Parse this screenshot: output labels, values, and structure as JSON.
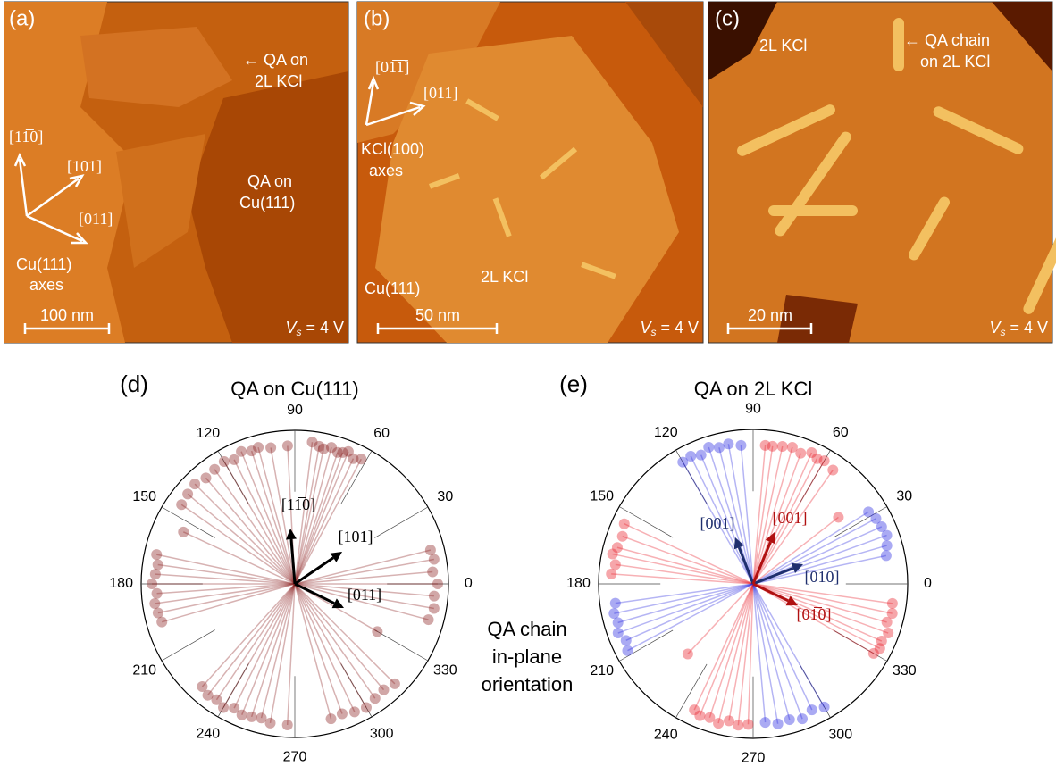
{
  "panels": [
    {
      "label": "(a)",
      "annotations": [
        "← QA on",
        "2L KCl",
        "QA on",
        "Cu(111)",
        "Cu(111)",
        "axes"
      ],
      "axis_labels": [
        "[11̅0]",
        "[101]",
        "[011]"
      ],
      "scale_bar": "100 nm",
      "bias": {
        "symbol": "V",
        "subscript": "s",
        "text": "= 4 V"
      }
    },
    {
      "label": "(b)",
      "annotations": [
        "KCl(100)",
        "axes",
        "Cu(111)",
        "2L KCl"
      ],
      "axis_labels": [
        "[01̅1̅]",
        "[011]"
      ],
      "scale_bar": "50 nm",
      "bias": {
        "symbol": "V",
        "subscript": "s",
        "text": "= 4 V"
      }
    },
    {
      "label": "(c)",
      "annotations": [
        "2L KCl",
        "← QA chain",
        "on 2L KCl"
      ],
      "scale_bar": "20 nm",
      "bias": {
        "symbol": "V",
        "subscript": "s",
        "text": "= 4 V"
      }
    }
  ],
  "caption": [
    "QA chain",
    "in-plane",
    "orientation"
  ],
  "chart_data": [
    {
      "type": "polar",
      "label": "(d)",
      "title": "QA on Cu(111)",
      "xlim": [
        0,
        360
      ],
      "xticks": [
        0,
        30,
        60,
        90,
        120,
        150,
        180,
        210,
        240,
        270,
        300,
        330
      ],
      "rlim": [
        0,
        1
      ],
      "annotations": [
        {
          "text": "[11̅0]",
          "color": "#000000"
        },
        {
          "text": "[101]",
          "color": "#000000"
        },
        {
          "text": "[011]",
          "color": "#000000"
        }
      ],
      "series": [
        {
          "color": "#8b2323",
          "x": [
            62,
            65,
            68,
            70,
            72,
            75,
            78,
            80,
            83,
            100,
            105,
            108,
            112,
            116,
            120,
            125,
            130,
            135,
            140,
            145,
            168,
            172,
            176,
            180,
            184,
            188,
            192,
            196,
            228,
            232,
            236,
            240,
            244,
            248,
            252,
            256,
            260,
            285,
            290,
            295,
            300,
            305,
            310,
            315,
            345,
            350,
            355,
            0,
            5,
            10,
            14,
            93,
            155,
            330,
            267
          ],
          "values": [
            0.92,
            0.9,
            0.93,
            0.91,
            0.9,
            0.92,
            0.9,
            0.91,
            0.93,
            0.9,
            0.92,
            0.91,
            0.93,
            0.9,
            0.92,
            0.91,
            0.9,
            0.92,
            0.91,
            0.9,
            0.92,
            0.9,
            0.91,
            0.93,
            0.9,
            0.92,
            0.91,
            0.9,
            0.9,
            0.92,
            0.91,
            0.93,
            0.9,
            0.92,
            0.91,
            0.9,
            0.92,
            0.91,
            0.9,
            0.92,
            0.93,
            0.91,
            0.9,
            0.92,
            0.9,
            0.92,
            0.91,
            0.93,
            0.9,
            0.92,
            0.91,
            0.9,
            0.8,
            0.62,
            0.92
          ]
        }
      ]
    },
    {
      "type": "polar",
      "label": "(e)",
      "title": "QA on 2L KCl",
      "xlim": [
        0,
        360
      ],
      "xticks": [
        0,
        30,
        60,
        90,
        120,
        150,
        180,
        210,
        240,
        270,
        300,
        330
      ],
      "rlim": [
        0,
        1
      ],
      "annotations": [
        {
          "text": "[001]",
          "color": "#1f2f6e"
        },
        {
          "text": "[010]",
          "color": "#1f2f6e"
        },
        {
          "text": "[001]",
          "color": "#b01010"
        },
        {
          "text": "[01̅0]",
          "color": "#b01010"
        }
      ],
      "series": [
        {
          "color": "#e8202a",
          "x": [
            55,
            60,
            63,
            66,
            70,
            74,
            78,
            82,
            155,
            160,
            165,
            168,
            172,
            176,
            330,
            333,
            336,
            340,
            344,
            348,
            352,
            245,
            248,
            252,
            256,
            260,
            264,
            268,
            38,
            227,
            85
          ],
          "values": [
            0.9,
            0.92,
            0.91,
            0.93,
            0.9,
            0.92,
            0.91,
            0.9,
            0.92,
            0.9,
            0.91,
            0.93,
            0.9,
            0.92,
            0.9,
            0.92,
            0.91,
            0.93,
            0.9,
            0.92,
            0.91,
            0.9,
            0.92,
            0.91,
            0.93,
            0.9,
            0.92,
            0.91,
            0.7,
            0.62,
            0.9
          ]
        },
        {
          "color": "#2a2ae0",
          "x": [
            95,
            100,
            104,
            108,
            112,
            116,
            120,
            12,
            16,
            20,
            24,
            28,
            32,
            188,
            192,
            196,
            200,
            204,
            208,
            275,
            280,
            285,
            290,
            295,
            300
          ],
          "values": [
            0.9,
            0.92,
            0.91,
            0.93,
            0.9,
            0.92,
            0.91,
            0.88,
            0.9,
            0.92,
            0.91,
            0.9,
            0.88,
            0.9,
            0.92,
            0.91,
            0.93,
            0.9,
            0.92,
            0.9,
            0.92,
            0.91,
            0.93,
            0.9,
            0.92
          ]
        }
      ]
    }
  ]
}
